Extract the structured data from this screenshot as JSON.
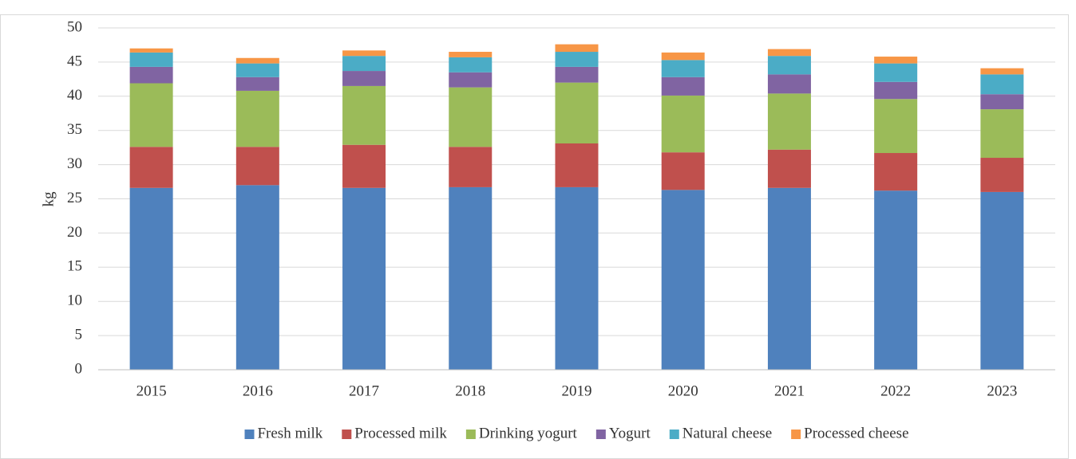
{
  "chart_data": {
    "type": "stacked_bar",
    "categories": [
      "2015",
      "2016",
      "2017",
      "2018",
      "2019",
      "2020",
      "2021",
      "2022",
      "2023"
    ],
    "y_label": "kg",
    "ylim": [
      0,
      50
    ],
    "yticks": [
      0,
      5,
      10,
      15,
      20,
      25,
      30,
      35,
      40,
      45,
      50
    ],
    "grid": true,
    "legend": "bottom",
    "series": [
      {
        "name": "Fresh milk",
        "color": "#4f81bd",
        "values": [
          26.6,
          27.0,
          26.6,
          26.7,
          26.7,
          26.3,
          26.6,
          26.2,
          26.0
        ]
      },
      {
        "name": "Processed milk",
        "color": "#c0504d",
        "values": [
          6.0,
          5.6,
          6.3,
          5.9,
          6.4,
          5.5,
          5.6,
          5.5,
          5.0
        ]
      },
      {
        "name": "Drinking yogurt",
        "color": "#9bbb59",
        "values": [
          9.3,
          8.2,
          8.6,
          8.7,
          8.9,
          8.3,
          8.2,
          7.9,
          7.1
        ]
      },
      {
        "name": "Yogurt",
        "color": "#8064a2",
        "values": [
          2.4,
          2.0,
          2.2,
          2.2,
          2.3,
          2.7,
          2.8,
          2.5,
          2.2
        ]
      },
      {
        "name": "Natural cheese",
        "color": "#4bacc6",
        "values": [
          2.1,
          2.0,
          2.2,
          2.2,
          2.2,
          2.5,
          2.7,
          2.7,
          2.9
        ]
      },
      {
        "name": "Processed cheese",
        "color": "#f79646",
        "values": [
          0.6,
          0.8,
          0.8,
          0.8,
          1.1,
          1.1,
          1.0,
          1.0,
          0.9
        ]
      }
    ]
  }
}
